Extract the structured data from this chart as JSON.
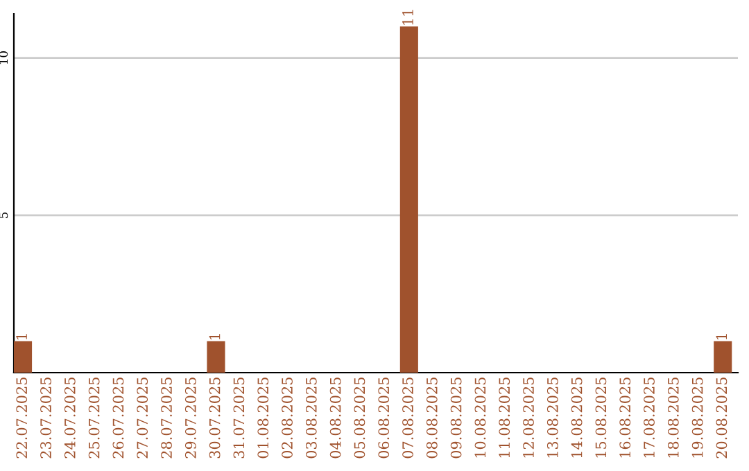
{
  "chart_data": {
    "type": "bar",
    "categories": [
      "22.07.2025",
      "23.07.2025",
      "24.07.2025",
      "25.07.2025",
      "26.07.2025",
      "27.07.2025",
      "28.07.2025",
      "29.07.2025",
      "30.07.2025",
      "31.07.2025",
      "01.08.2025",
      "02.08.2025",
      "03.08.2025",
      "04.08.2025",
      "05.08.2025",
      "06.08.2025",
      "07.08.2025",
      "08.08.2025",
      "09.08.2025",
      "10.08.2025",
      "11.08.2025",
      "12.08.2025",
      "13.08.2025",
      "14.08.2025",
      "15.08.2025",
      "16.08.2025",
      "17.08.2025",
      "18.08.2025",
      "19.08.2025",
      "20.08.2025"
    ],
    "values": [
      1,
      0,
      0,
      0,
      0,
      0,
      0,
      0,
      1,
      0,
      0,
      0,
      0,
      0,
      0,
      0,
      11,
      0,
      0,
      0,
      0,
      0,
      0,
      0,
      0,
      0,
      0,
      0,
      0,
      1
    ],
    "value_labels": [
      "1",
      null,
      null,
      null,
      null,
      null,
      null,
      null,
      "1",
      null,
      null,
      null,
      null,
      null,
      null,
      null,
      "11",
      null,
      null,
      null,
      null,
      null,
      null,
      null,
      null,
      null,
      null,
      null,
      null,
      "1"
    ],
    "color": "#a0522d",
    "ylim": [
      0,
      11.4
    ],
    "yticks": [
      5,
      10
    ],
    "grid": "y"
  }
}
